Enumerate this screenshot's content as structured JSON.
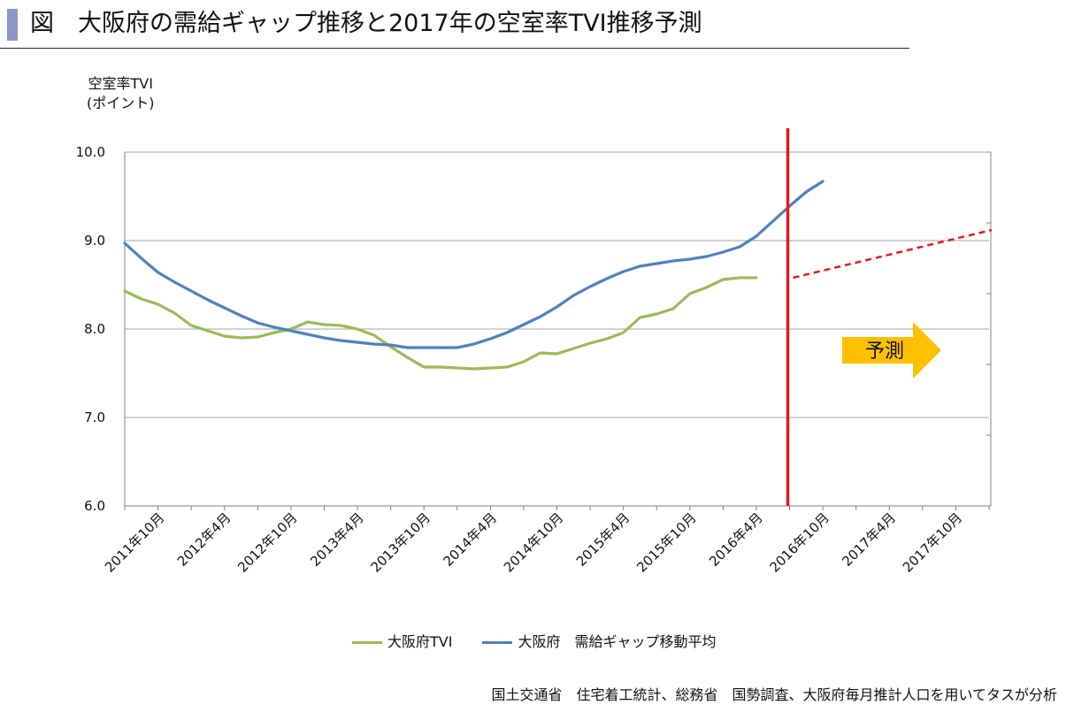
{
  "title": "図　大阪府の需給ギャップ推移と2017年の空室率TVI推移予測",
  "y_axis_title_line1": "空室率TVI",
  "y_axis_title_line2": "(ポイント)",
  "source": "国土交通省　住宅着工統計、総務省　国勢調査、大阪府毎月推計人口を用いてタスが分析",
  "forecast_label": "予測",
  "colors": {
    "tvi": "#9bbb59",
    "gap": "#4f81bd",
    "divider": "#e41a1c",
    "forecast": "#e41a1c",
    "arrow": "#ffc000",
    "grid": "#a6a6a6"
  },
  "chart_data": {
    "type": "line",
    "ylim": [
      6.0,
      10.0
    ],
    "yticks": [
      "6.0",
      "7.0",
      "8.0",
      "9.0",
      "10.0"
    ],
    "x_labels": [
      "2011年10月",
      "2012年4月",
      "2012年10月",
      "2013年4月",
      "2013年10月",
      "2014年4月",
      "2014年10月",
      "2015年4月",
      "2015年10月",
      "2016年4月",
      "2016年10月",
      "2017年4月",
      "2017年10月"
    ],
    "x_count": 26,
    "divider_index": 20,
    "series": [
      {
        "name": "大阪府TVI",
        "values": [
          8.43,
          8.34,
          8.28,
          8.18,
          8.04,
          7.98,
          7.92,
          7.9,
          7.91,
          7.96,
          8.0,
          8.08,
          8.05,
          8.04,
          8.0,
          7.93,
          7.8,
          7.68,
          7.57,
          7.57,
          7.56,
          7.55,
          7.56,
          7.57,
          7.63,
          7.73,
          7.72,
          7.78,
          7.84,
          7.89,
          7.96,
          8.13,
          8.17,
          8.23,
          8.4,
          8.47,
          8.56,
          8.58,
          8.58
        ],
        "step": 0.5
      },
      {
        "name": "大阪府　需給ギャップ移動平均",
        "values": [
          8.97,
          8.8,
          8.64,
          8.53,
          8.43,
          8.33,
          8.24,
          8.15,
          8.07,
          8.02,
          7.98,
          7.94,
          7.9,
          7.87,
          7.85,
          7.83,
          7.82,
          7.79,
          7.79,
          7.79,
          7.79,
          7.83,
          7.89,
          7.96,
          8.05,
          8.14,
          8.25,
          8.38,
          8.48,
          8.57,
          8.65,
          8.71,
          8.74,
          8.77,
          8.79,
          8.82,
          8.87,
          8.93,
          9.05,
          9.22,
          9.39,
          9.55,
          9.67
        ],
        "step": 0.5
      }
    ],
    "forecast": {
      "x": [
        20,
        26
      ],
      "values": [
        8.58,
        9.12
      ]
    }
  },
  "legend": {
    "tvi_label": "大阪府TVI",
    "gap_label": "大阪府　需給ギャップ移動平均"
  }
}
